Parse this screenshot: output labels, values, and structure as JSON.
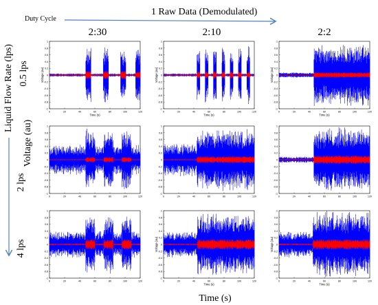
{
  "header": {
    "duty_cycle_label": "Duty Cycle",
    "raw_data_title": "1 Raw Data (Demodulated)",
    "arrow_color": "#4f81bd"
  },
  "rows_header": {
    "flow_rate_label": "Liquid Flow Rate (lps)",
    "voltage_label": "Voltage (au)"
  },
  "bottom_label": "Time (s)",
  "colors": {
    "raw": "#0000ff",
    "demod": "#ff0000",
    "arrow": "#4f81bd"
  },
  "chart_data": {
    "type": "line",
    "columns": [
      "2:30",
      "2:10",
      "2:2"
    ],
    "rows": [
      "0.5 lps",
      "2 lps",
      "4 lps"
    ],
    "xlabel": "Time (s)",
    "ylabel": "Voltage (au)",
    "xlim": [
      0,
      120
    ],
    "ylim": [
      -1,
      1
    ],
    "xticks": [
      "0",
      "20",
      "40",
      "60",
      "80",
      "100",
      "120"
    ],
    "yticks": [
      "1",
      "0.8",
      "0.6",
      "0.4",
      "0.2",
      "0",
      "-0.2",
      "-0.4",
      "-0.6",
      "-0.8",
      "-1"
    ],
    "series_colors": [
      "#0000ff",
      "#ff0000"
    ],
    "panels": [
      {
        "row": 0,
        "col": 0,
        "column": "2:30",
        "row_label": "0.5 lps",
        "baseline": 0.05,
        "bursts": [
          [
            48,
            55
          ],
          [
            71,
            78
          ],
          [
            94,
            101
          ],
          [
            114,
            120
          ]
        ],
        "burst_amp": 0.85,
        "red_amp": 0.12,
        "ylabel": "Voltage (au)",
        "xlabel": "Time (s)"
      },
      {
        "row": 0,
        "col": 1,
        "column": "2:10",
        "row_label": "0.5 lps",
        "baseline": 0.05,
        "bursts": [
          [
            44,
            48
          ],
          [
            55,
            59
          ],
          [
            66,
            70
          ],
          [
            77,
            81
          ],
          [
            88,
            92
          ],
          [
            99,
            103
          ],
          [
            110,
            114
          ]
        ],
        "burst_amp": 0.9,
        "red_amp": 0.1,
        "ylabel": "Voltage (au)",
        "xlabel": "Time (s)"
      },
      {
        "row": 0,
        "col": 2,
        "column": "2:2",
        "row_label": "0.5 lps",
        "baseline": 0.08,
        "bursts": [
          [
            46,
            120
          ]
        ],
        "burst_amp": 0.95,
        "red_amp": 0.08,
        "ylabel": "Voltage (au)",
        "xlabel": "Time (s)"
      },
      {
        "row": 1,
        "col": 0,
        "column": "2:30",
        "row_label": "2 lps",
        "baseline": 0.45,
        "bursts": [
          [
            48,
            60
          ],
          [
            72,
            84
          ],
          [
            96,
            108
          ]
        ],
        "burst_amp": 0.95,
        "red_amp": 0.08,
        "ylabel": "",
        "xlabel": ""
      },
      {
        "row": 1,
        "col": 1,
        "column": "2:10",
        "row_label": "2 lps",
        "baseline": 0.5,
        "bursts": [
          [
            44,
            120
          ]
        ],
        "burst_amp": 0.95,
        "red_amp": 0.1,
        "ylabel": "",
        "xlabel": ""
      },
      {
        "row": 1,
        "col": 2,
        "column": "2:2",
        "row_label": "2 lps",
        "baseline": 0.1,
        "bursts": [
          [
            46,
            120
          ]
        ],
        "burst_amp": 1.0,
        "red_amp": 0.12,
        "ylabel": "",
        "xlabel": ""
      },
      {
        "row": 2,
        "col": 0,
        "column": "2:30",
        "row_label": "4 lps",
        "baseline": 0.4,
        "bursts": [
          [
            48,
            60
          ],
          [
            72,
            84
          ],
          [
            96,
            108
          ]
        ],
        "burst_amp": 0.9,
        "red_amp": 0.15,
        "ylabel": "",
        "xlabel": ""
      },
      {
        "row": 2,
        "col": 1,
        "column": "2:10",
        "row_label": "4 lps",
        "baseline": 0.4,
        "bursts": [
          [
            45,
            120
          ]
        ],
        "burst_amp": 0.95,
        "red_amp": 0.15,
        "ylabel": "Voltage (au)",
        "xlabel": "Time (s)"
      },
      {
        "row": 2,
        "col": 2,
        "column": "2:2",
        "row_label": "4 lps",
        "baseline": 0.4,
        "bursts": [
          [
            45,
            120
          ]
        ],
        "burst_amp": 1.0,
        "red_amp": 0.15,
        "ylabel": "Voltage (au)",
        "xlabel": "Time (s)"
      }
    ]
  }
}
